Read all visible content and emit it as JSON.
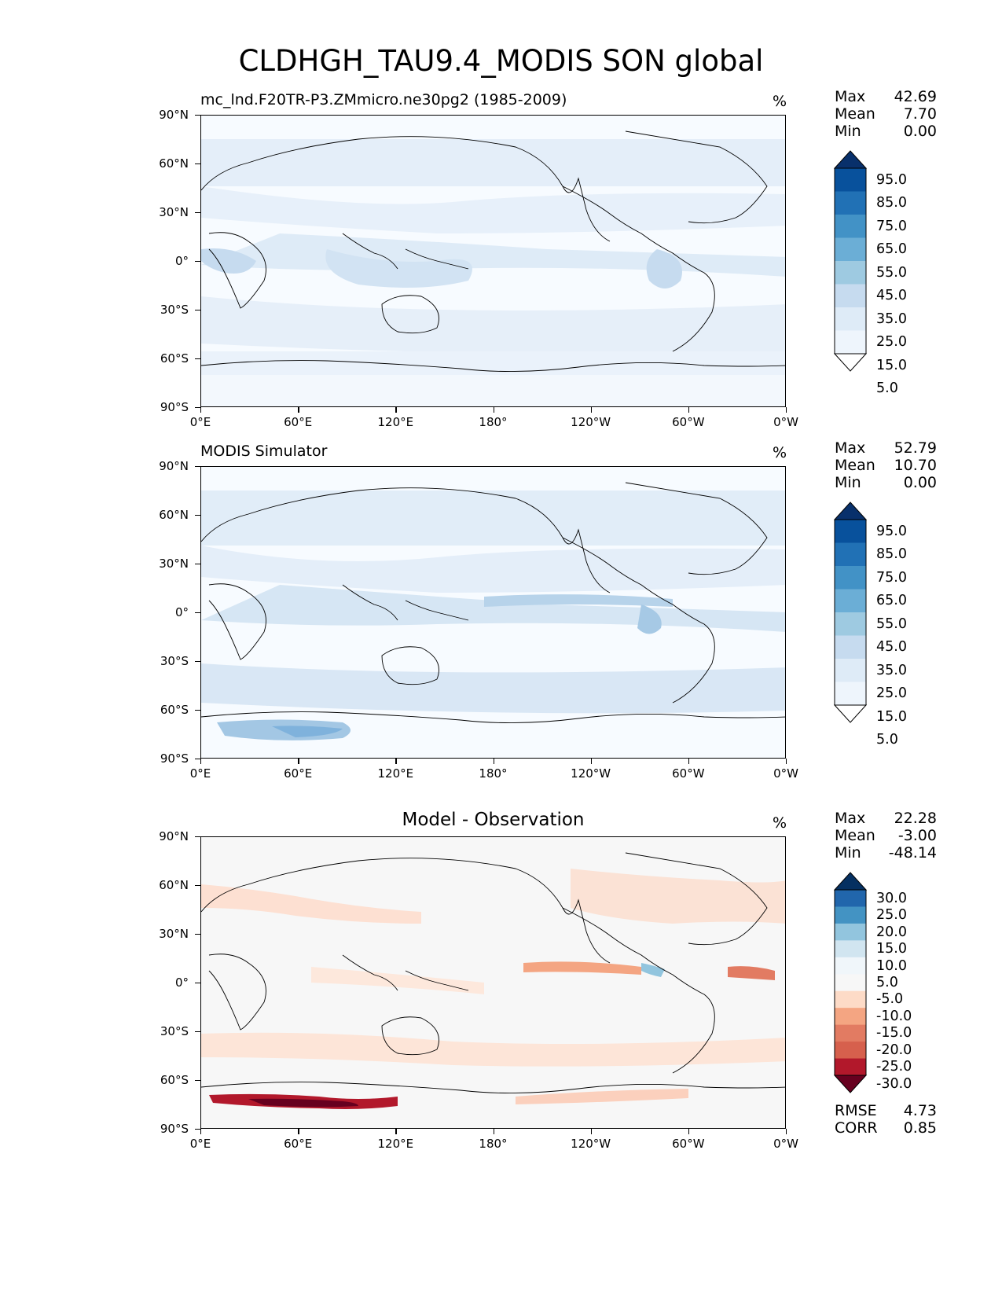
{
  "figure": {
    "title": "CLDHGH_TAU9.4_MODIS SON global"
  },
  "axes": {
    "yticks": [
      "90°N",
      "60°N",
      "30°N",
      "0°",
      "30°S",
      "60°S",
      "90°S"
    ],
    "xticks": [
      "0°E",
      "60°E",
      "120°E",
      "180°",
      "120°W",
      "60°W",
      "0°W"
    ]
  },
  "panels": [
    {
      "title": "mc_lnd.F20TR-P3.ZMmicro.ne30pg2 (1985-2009)",
      "title_align": "left",
      "units": "%",
      "stats": {
        "max_label": "Max",
        "max": "42.69",
        "mean_label": "Mean",
        "mean": "7.70",
        "min_label": "Min",
        "min": "0.00"
      },
      "colorbar": {
        "levels": [
          "95.0",
          "85.0",
          "75.0",
          "65.0",
          "55.0",
          "45.0",
          "35.0",
          "25.0",
          "15.0",
          "5.0"
        ],
        "colors": [
          "#08306b",
          "#08519c",
          "#2171b5",
          "#4292c6",
          "#6baed6",
          "#9ecae1",
          "#c6dbef",
          "#deebf7",
          "#eef5fc",
          "#ffffff"
        ]
      }
    },
    {
      "title": "MODIS Simulator",
      "title_align": "left",
      "units": "%",
      "stats": {
        "max_label": "Max",
        "max": "52.79",
        "mean_label": "Mean",
        "mean": "10.70",
        "min_label": "Min",
        "min": "0.00"
      },
      "colorbar": {
        "levels": [
          "95.0",
          "85.0",
          "75.0",
          "65.0",
          "55.0",
          "45.0",
          "35.0",
          "25.0",
          "15.0",
          "5.0"
        ],
        "colors": [
          "#08306b",
          "#08519c",
          "#2171b5",
          "#4292c6",
          "#6baed6",
          "#9ecae1",
          "#c6dbef",
          "#deebf7",
          "#eef5fc",
          "#ffffff"
        ]
      }
    },
    {
      "title": "Model - Observation",
      "title_align": "center",
      "units": "%",
      "stats": {
        "max_label": "Max",
        "max": "22.28",
        "mean_label": "Mean",
        "mean": "-3.00",
        "min_label": "Min",
        "min": "-48.14"
      },
      "colorbar": {
        "levels": [
          "30.0",
          "25.0",
          "20.0",
          "15.0",
          "10.0",
          "5.0",
          "-5.0",
          "-10.0",
          "-15.0",
          "-20.0",
          "-25.0",
          "-30.0"
        ],
        "colors": [
          "#053061",
          "#2166ac",
          "#4393c3",
          "#92c5de",
          "#d1e5f0",
          "#f0f6fa",
          "#f7f7f7",
          "#fddbc7",
          "#f4a582",
          "#e27b62",
          "#d6604d",
          "#b2182b",
          "#67001f"
        ]
      },
      "metrics": {
        "rmse_label": "RMSE",
        "rmse": "4.73",
        "corr_label": "CORR",
        "corr": "0.85"
      }
    }
  ]
}
